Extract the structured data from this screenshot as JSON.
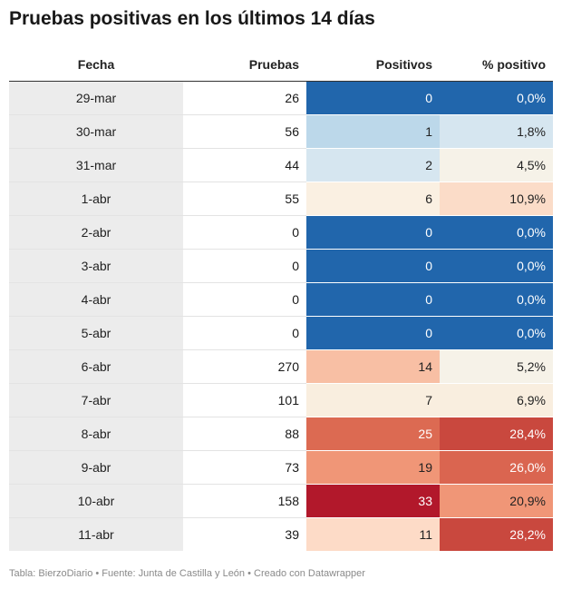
{
  "title": "Pruebas positivas en los últimos 14 días",
  "footer": "Tabla: BierzoDiario • Fuente: Junta de Castilla y León • Creado con Datawrapper",
  "chart_data": {
    "type": "table",
    "columns": [
      "Fecha",
      "Pruebas",
      "Positivos",
      "% positivo"
    ],
    "rows": [
      {
        "fecha": "29-mar",
        "pruebas": "26",
        "positivos": "0",
        "pct": "0,0%",
        "pos_bg": "#2166ac",
        "pct_bg": "#2166ac"
      },
      {
        "fecha": "30-mar",
        "pruebas": "56",
        "positivos": "1",
        "pct": "1,8%",
        "pos_bg": "#bcd8ea",
        "pct_bg": "#d6e6f0"
      },
      {
        "fecha": "31-mar",
        "pruebas": "44",
        "positivos": "2",
        "pct": "4,5%",
        "pos_bg": "#d6e6f0",
        "pct_bg": "#f6f2e8"
      },
      {
        "fecha": "1-abr",
        "pruebas": "55",
        "positivos": "6",
        "pct": "10,9%",
        "pos_bg": "#faf0e2",
        "pct_bg": "#fbdcc8"
      },
      {
        "fecha": "2-abr",
        "pruebas": "0",
        "positivos": "0",
        "pct": "0,0%",
        "pos_bg": "#2166ac",
        "pct_bg": "#2166ac"
      },
      {
        "fecha": "3-abr",
        "pruebas": "0",
        "positivos": "0",
        "pct": "0,0%",
        "pos_bg": "#2166ac",
        "pct_bg": "#2166ac"
      },
      {
        "fecha": "4-abr",
        "pruebas": "0",
        "positivos": "0",
        "pct": "0,0%",
        "pos_bg": "#2166ac",
        "pct_bg": "#2166ac"
      },
      {
        "fecha": "5-abr",
        "pruebas": "0",
        "positivos": "0",
        "pct": "0,0%",
        "pos_bg": "#2166ac",
        "pct_bg": "#2166ac"
      },
      {
        "fecha": "6-abr",
        "pruebas": "270",
        "positivos": "14",
        "pct": "5,2%",
        "pos_bg": "#f8bfa4",
        "pct_bg": "#f6f2e8"
      },
      {
        "fecha": "7-abr",
        "pruebas": "101",
        "positivos": "7",
        "pct": "6,9%",
        "pos_bg": "#f9eedf",
        "pct_bg": "#f9eedf"
      },
      {
        "fecha": "8-abr",
        "pruebas": "88",
        "positivos": "25",
        "pct": "28,4%",
        "pos_bg": "#dc6a52",
        "pct_bg": "#c9483e"
      },
      {
        "fecha": "9-abr",
        "pruebas": "73",
        "positivos": "19",
        "pct": "26,0%",
        "pos_bg": "#f09677",
        "pct_bg": "#da6550"
      },
      {
        "fecha": "10-abr",
        "pruebas": "158",
        "positivos": "33",
        "pct": "20,9%",
        "pos_bg": "#b2182b",
        "pct_bg": "#f09677"
      },
      {
        "fecha": "11-abr",
        "pruebas": "39",
        "positivos": "11",
        "pct": "28,2%",
        "pos_bg": "#fddbc7",
        "pct_bg": "#c9483e"
      }
    ]
  }
}
